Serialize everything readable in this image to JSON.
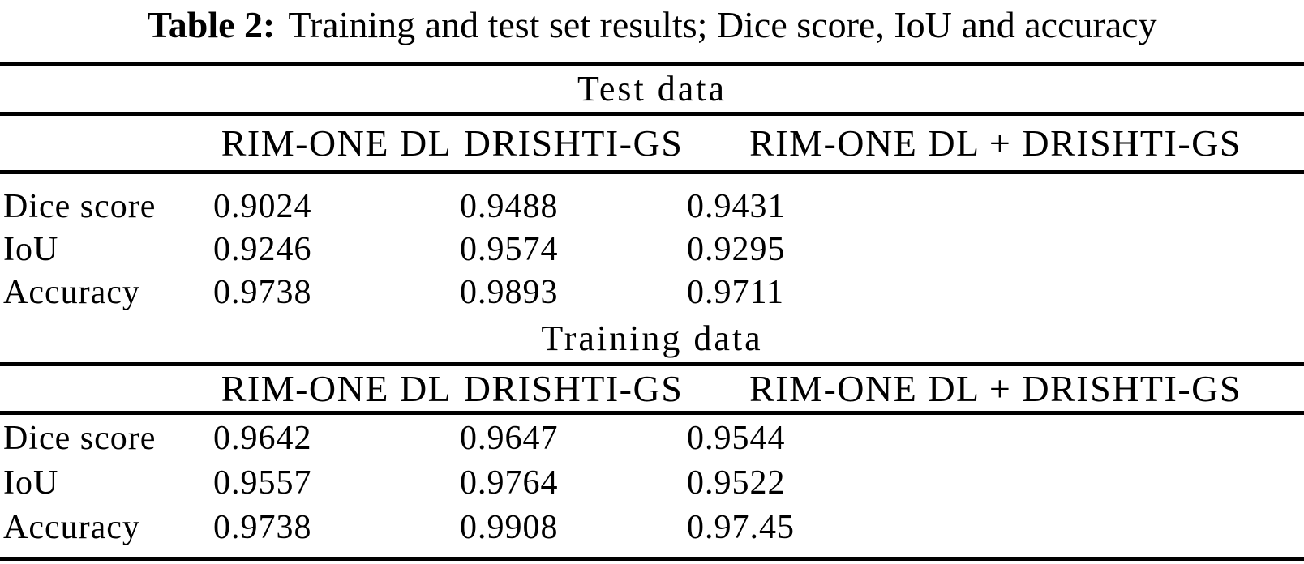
{
  "title": {
    "label": "Table 2:",
    "text": "Training and test set results; Dice score, IoU and accuracy"
  },
  "table": {
    "columns": [
      "RIM-ONE DL",
      "DRISHTI-GS",
      "RIM-ONE DL + DRISHTI-GS"
    ],
    "sections": [
      {
        "heading": "Test data",
        "rows": [
          {
            "label": "Dice score",
            "values": [
              "0.9024",
              "0.9488",
              "0.9431"
            ]
          },
          {
            "label": "IoU",
            "values": [
              "0.9246",
              "0.9574",
              "0.9295"
            ]
          },
          {
            "label": "Accuracy",
            "values": [
              "0.9738",
              "0.9893",
              "0.9711"
            ]
          }
        ]
      },
      {
        "heading": "Training data",
        "rows": [
          {
            "label": "Dice score",
            "values": [
              "0.9642",
              "0.9647",
              "0.9544"
            ]
          },
          {
            "label": "IoU",
            "values": [
              "0.9557",
              "0.9764",
              "0.9522"
            ]
          },
          {
            "label": "Accuracy",
            "values": [
              "0.9738",
              "0.9908",
              "0.97.45"
            ]
          }
        ]
      }
    ]
  }
}
